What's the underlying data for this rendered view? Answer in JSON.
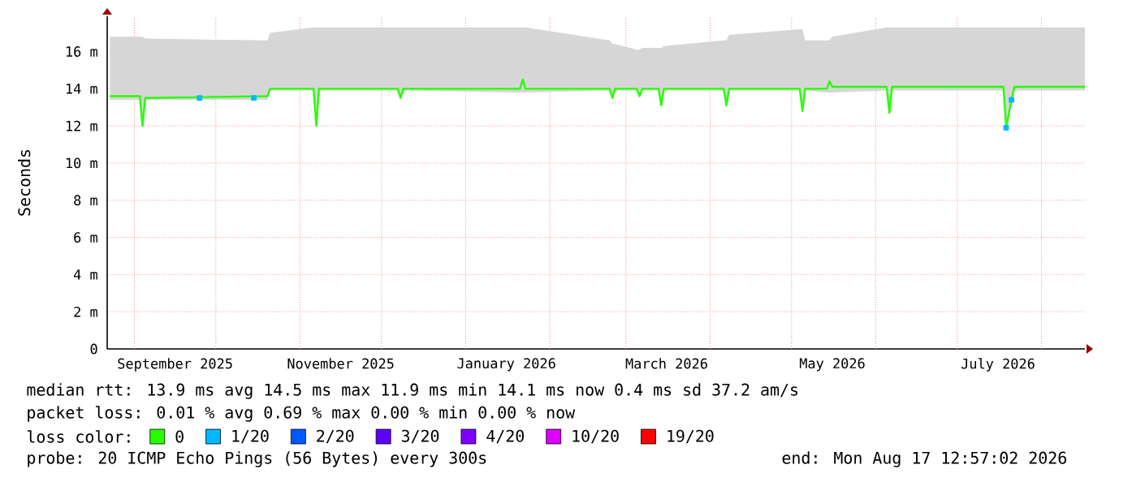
{
  "chart_data": {
    "type": "line",
    "ylabel": "Seconds",
    "legend_title": "loss color:",
    "legend": "bottom",
    "grid": true,
    "xlim": [
      "2025-08-22",
      "2026-08-17"
    ],
    "ylim": [
      0,
      17.9
    ],
    "xticks": [
      {
        "value": "2025-09-01",
        "label": null
      },
      {
        "value": "2025-09-16",
        "label": "September 2025"
      },
      {
        "value": "2025-10-01",
        "label": null
      },
      {
        "value": "2025-11-01",
        "label": null
      },
      {
        "value": "2025-11-16",
        "label": "November 2025"
      },
      {
        "value": "2025-12-01",
        "label": null
      },
      {
        "value": "2026-01-01",
        "label": null
      },
      {
        "value": "2026-01-16",
        "label": "January 2026"
      },
      {
        "value": "2026-02-01",
        "label": null
      },
      {
        "value": "2026-03-01",
        "label": null
      },
      {
        "value": "2026-03-16",
        "label": "March 2026"
      },
      {
        "value": "2026-04-01",
        "label": null
      },
      {
        "value": "2026-05-01",
        "label": null
      },
      {
        "value": "2026-05-16",
        "label": "May 2026"
      },
      {
        "value": "2026-06-01",
        "label": null
      },
      {
        "value": "2026-07-01",
        "label": null
      },
      {
        "value": "2026-07-16",
        "label": "July 2026"
      },
      {
        "value": "2026-08-01",
        "label": null
      }
    ],
    "yticks": [
      0,
      {
        "value": 2,
        "label": "2 m"
      },
      {
        "value": 4,
        "label": "4 m"
      },
      {
        "value": 6,
        "label": "6 m"
      },
      {
        "value": 8,
        "label": "8 m"
      },
      {
        "value": 10,
        "label": "10 m"
      },
      {
        "value": 12,
        "label": "12 m"
      },
      {
        "value": 14,
        "label": "14 m"
      },
      {
        "value": 16,
        "label": "16 m"
      }
    ],
    "series": [
      {
        "name": "0",
        "color": "#26ff00",
        "x": [
          "2025-08-23",
          "2025-09-03",
          "2025-09-04",
          "2025-09-05",
          "2025-10-20",
          "2025-10-21",
          "2025-11-06",
          "2025-11-07",
          "2025-11-08",
          "2025-12-07",
          "2025-12-08",
          "2025-12-09",
          "2026-01-21",
          "2026-01-22",
          "2026-01-23",
          "2026-02-23",
          "2026-02-24",
          "2026-02-25",
          "2026-03-05",
          "2026-03-06",
          "2026-03-07",
          "2026-03-13",
          "2026-03-14",
          "2026-03-15",
          "2026-04-06",
          "2026-04-07",
          "2026-04-08",
          "2026-05-04",
          "2026-05-05",
          "2026-05-06",
          "2026-05-14",
          "2026-05-15",
          "2026-05-16",
          "2026-06-05",
          "2026-06-06",
          "2026-06-07",
          "2026-07-18",
          "2026-07-19",
          "2026-07-21",
          "2026-07-22",
          "2026-08-17"
        ],
        "values": [
          13.6,
          13.6,
          12.0,
          13.5,
          13.6,
          14.0,
          14.0,
          12.0,
          14.0,
          14.0,
          13.5,
          14.0,
          14.0,
          14.5,
          14.0,
          14.0,
          13.5,
          14.0,
          14.0,
          13.6,
          14.0,
          14.0,
          13.1,
          14.0,
          14.0,
          13.1,
          14.0,
          14.0,
          12.8,
          14.0,
          14.0,
          14.4,
          14.1,
          14.1,
          12.7,
          14.1,
          14.1,
          11.9,
          13.4,
          14.1,
          14.1
        ],
        "lower": [
          13.4,
          13.4,
          12.0,
          13.4,
          13.4,
          13.9,
          13.9,
          12.0,
          13.9,
          13.9,
          13.5,
          13.9,
          13.8,
          13.8,
          13.8,
          13.9,
          13.5,
          13.9,
          13.9,
          13.6,
          13.9,
          13.9,
          13.1,
          13.9,
          13.9,
          13.1,
          13.9,
          13.9,
          12.8,
          13.9,
          13.8,
          13.8,
          13.8,
          13.9,
          12.7,
          13.9,
          13.9,
          11.9,
          13.4,
          13.9,
          13.9
        ],
        "upper": [
          16.8,
          16.8,
          16.8,
          16.7,
          16.6,
          17.0,
          17.3,
          17.3,
          17.3,
          17.3,
          17.3,
          17.3,
          17.3,
          17.3,
          17.3,
          16.6,
          16.4,
          16.4,
          16.1,
          16.1,
          16.2,
          16.2,
          16.2,
          16.3,
          16.6,
          16.6,
          16.9,
          17.2,
          17.2,
          16.6,
          16.6,
          16.6,
          16.8,
          17.3,
          17.3,
          17.3,
          17.3,
          17.3,
          17.3,
          17.3,
          17.3
        ]
      },
      {
        "name": "1/20",
        "color": "#00b8ff",
        "type": "scatter",
        "x": [
          "2025-09-25",
          "2025-10-15",
          "2026-07-19",
          "2026-07-21"
        ],
        "values": [
          13.5,
          13.5,
          11.9,
          13.4
        ]
      },
      {
        "name": "2/20",
        "color": "#0059ff"
      },
      {
        "name": "3/20",
        "color": "#5e00ff"
      },
      {
        "name": "4/20",
        "color": "#7e00ff"
      },
      {
        "name": "10/20",
        "color": "#dd00ff"
      },
      {
        "name": "19/20",
        "color": "#ff0000"
      }
    ],
    "annotations": [
      "median rtt:  13.9 ms avg  14.5 ms max  11.9 ms min  14.1 ms now  0.4 ms sd  37.2   am/s",
      "packet loss: 0.01 % avg  0.69 % max  0.00 % min  0.00 % now",
      "probe:       20 ICMP Echo Pings (56 Bytes) every 300s",
      "end: Mon Aug 17 12:57:02 2026"
    ]
  }
}
